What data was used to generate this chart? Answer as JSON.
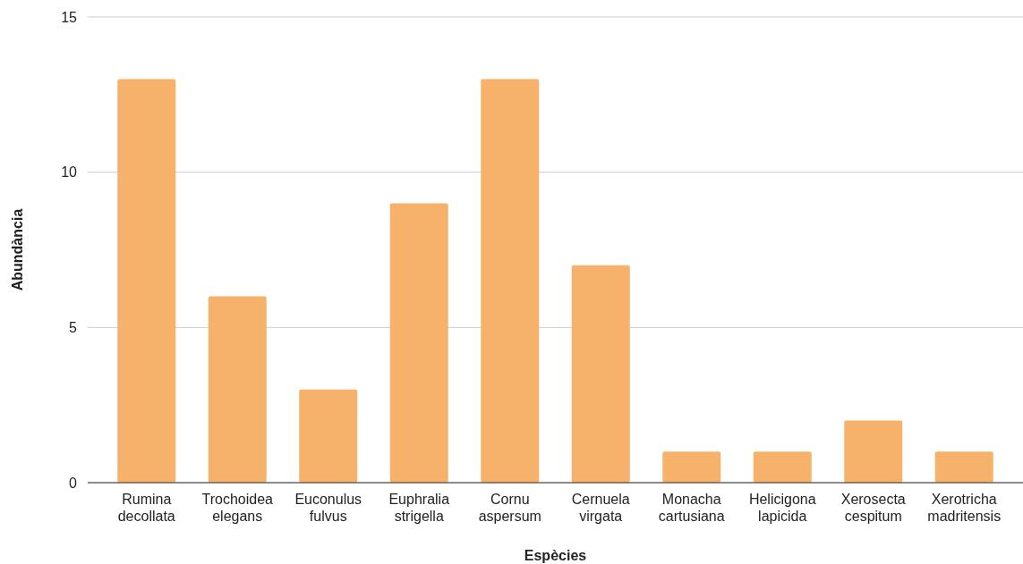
{
  "chart_data": {
    "type": "bar",
    "xlabel": "Espècies",
    "ylabel": "Abundància",
    "categories": [
      "Rumina decollata",
      "Trochoidea elegans",
      "Euconulus fulvus",
      "Euphralia strigella",
      "Cornu aspersum",
      "Cernuela virgata",
      "Monacha cartusiana",
      "Helicigona lapicida",
      "Xerosecta cespitum",
      "Xerotricha madritensis"
    ],
    "values": [
      13,
      6,
      3,
      9,
      13,
      7,
      1,
      1,
      2,
      1
    ],
    "color": "#f6b26b",
    "ylim": [
      0,
      15
    ],
    "yticks": [
      0,
      5,
      10,
      15
    ],
    "grid": "y"
  }
}
